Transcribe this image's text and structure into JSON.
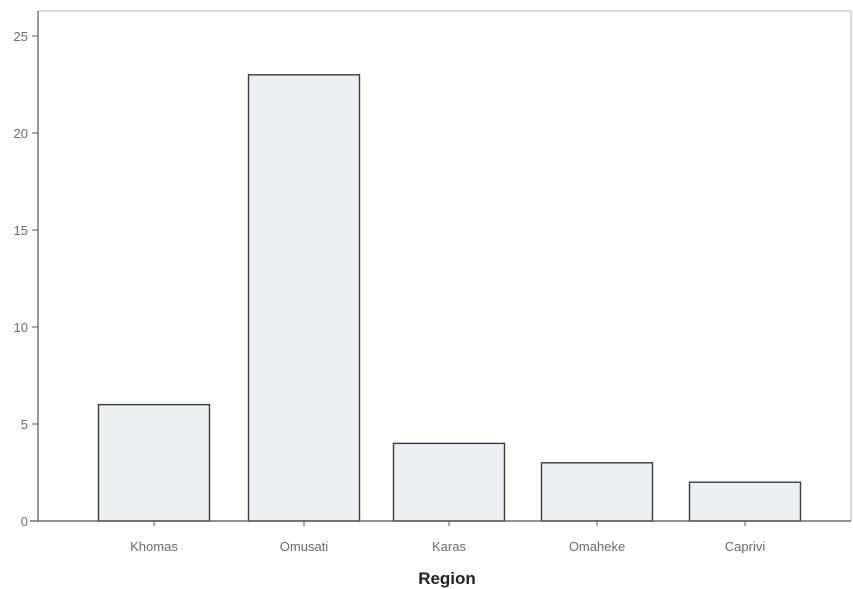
{
  "chart_data": {
    "type": "bar",
    "title": "",
    "xlabel": "Region",
    "ylabel": "",
    "categories": [
      "Khomas",
      "Omusati",
      "Karas",
      "Omaheke",
      "Caprivi"
    ],
    "values": [
      6,
      23,
      4,
      3,
      2
    ],
    "ylim": [
      0,
      25
    ],
    "yticks": [
      0,
      5,
      10,
      15,
      20,
      25
    ],
    "grid": false,
    "legend": "none",
    "colors": {
      "bar_fill": "#eeeff2",
      "bar_stroke": "#3a3a3a",
      "axis": "#555555",
      "frame": "#b9b9b9"
    }
  }
}
